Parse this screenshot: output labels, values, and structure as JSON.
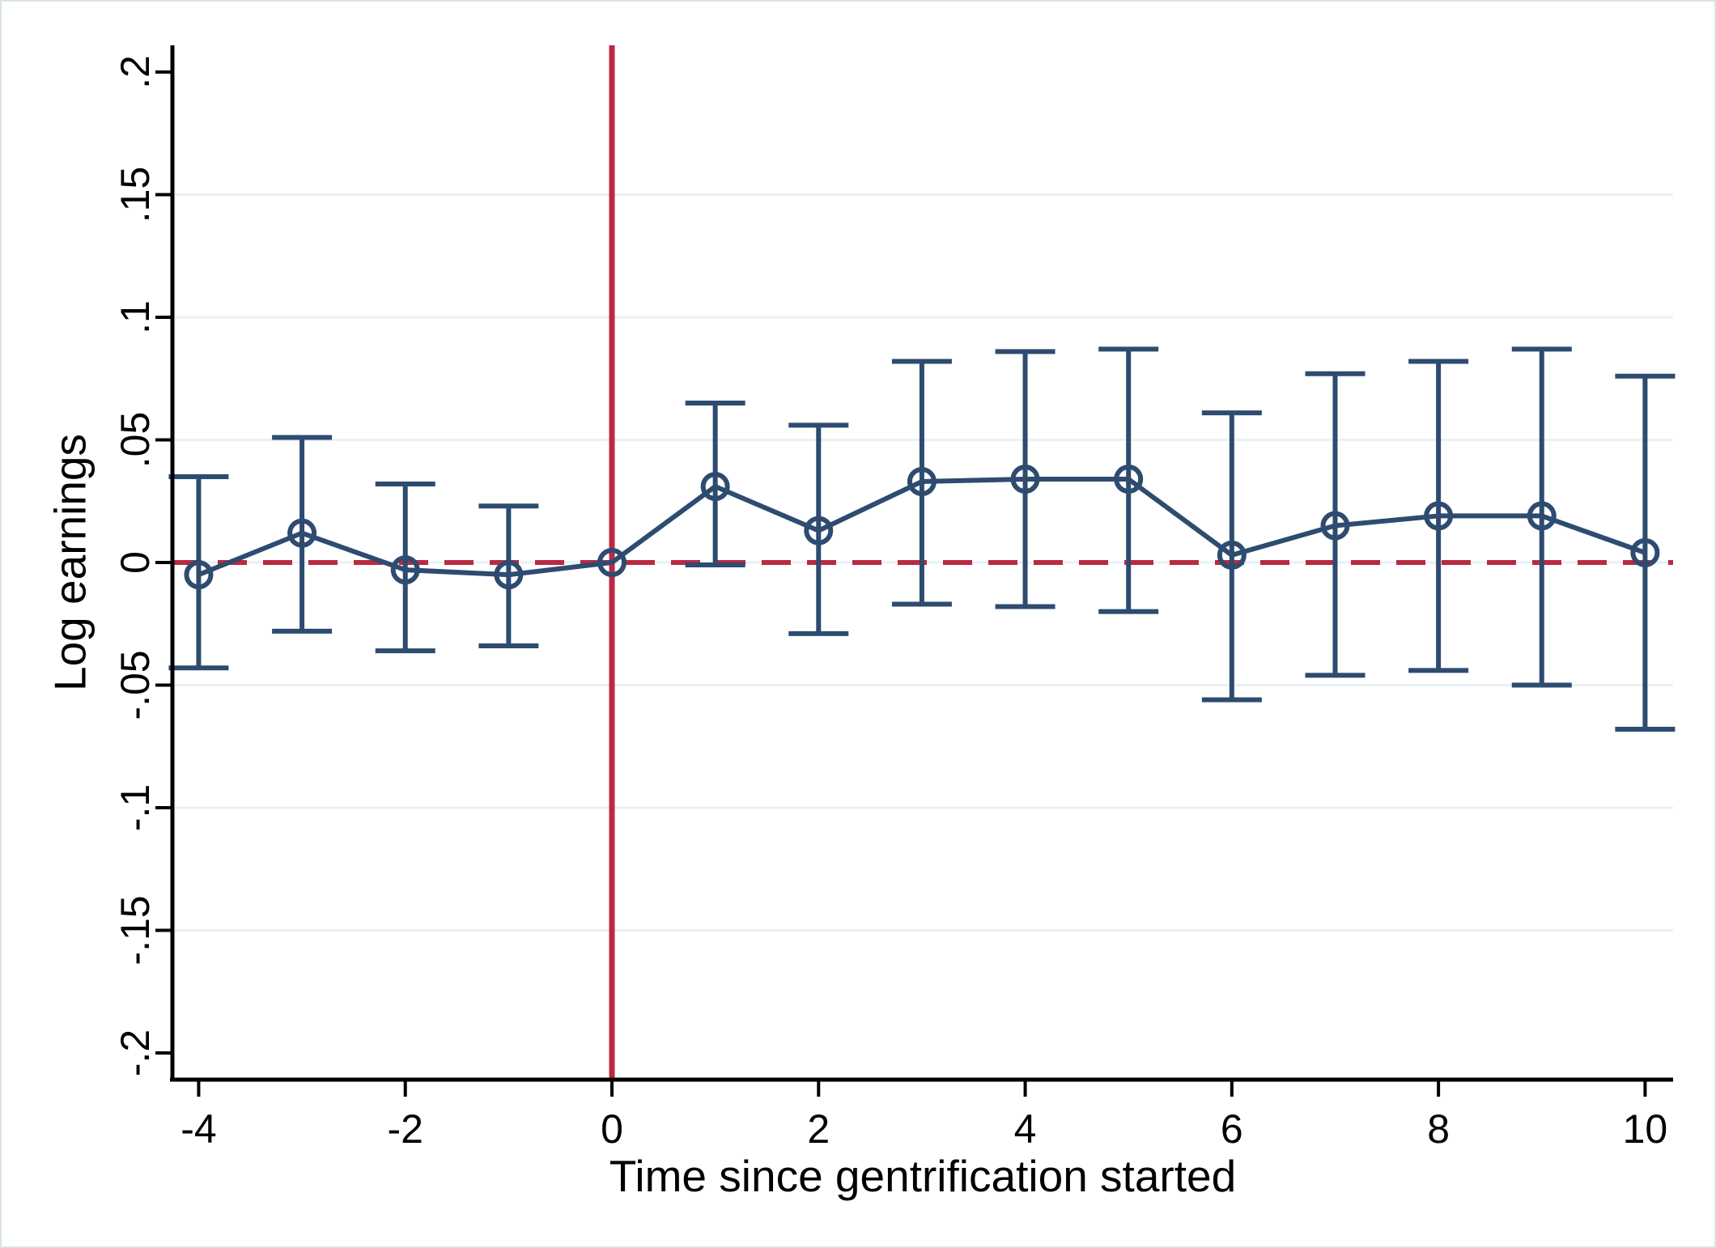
{
  "figure": {
    "background": "#ffffff",
    "border_color": "#d8e4e8"
  },
  "chart_data": {
    "type": "line",
    "title": "",
    "xlabel": "Time since gentrification started",
    "ylabel": "Log earnings",
    "x": [
      -4,
      -3,
      -2,
      -1,
      0,
      1,
      2,
      3,
      4,
      5,
      6,
      7,
      8,
      9,
      10
    ],
    "series": [
      {
        "name": "estimate",
        "marker": "open-circle",
        "values": [
          -0.005,
          0.012,
          -0.003,
          -0.005,
          0,
          0.031,
          0.013,
          0.033,
          0.034,
          0.034,
          0.003,
          0.015,
          0.019,
          0.019,
          0.004
        ]
      }
    ],
    "ci_low": [
      -0.043,
      -0.028,
      -0.036,
      -0.034,
      null,
      -0.001,
      -0.029,
      -0.017,
      -0.018,
      -0.02,
      -0.056,
      -0.046,
      -0.044,
      -0.05,
      -0.068
    ],
    "ci_high": [
      0.035,
      0.051,
      0.032,
      0.023,
      null,
      0.065,
      0.056,
      0.082,
      0.086,
      0.087,
      0.061,
      0.077,
      0.082,
      0.087,
      0.076
    ],
    "x_tick_values": [
      -4,
      -2,
      0,
      2,
      4,
      6,
      8,
      10
    ],
    "x_tick_labels": [
      "-4",
      "-2",
      "0",
      "2",
      "4",
      "6",
      "8",
      "10"
    ],
    "y_tick_values": [
      0.2,
      0.15,
      0.1,
      0.05,
      0,
      -0.05,
      -0.1,
      -0.15,
      -0.2
    ],
    "y_tick_labels": [
      ".2",
      ".15",
      ".1",
      ".05",
      "0",
      "-.05",
      "-.1",
      "-.15",
      "-.2"
    ],
    "gridline_values": [
      0.15,
      0.1,
      0.05,
      0,
      -0.05,
      -0.1,
      -0.15
    ],
    "xlim": [
      -4.3,
      10.3
    ],
    "ylim": [
      -0.21,
      0.21
    ],
    "reference_lines": {
      "vertical_x": 0,
      "horizontal_y": 0
    },
    "legend": null,
    "colors": {
      "series": "#2e4b70",
      "reference": "#bb2942",
      "gridline": "#e8f1f3",
      "axis": "#000000"
    }
  }
}
